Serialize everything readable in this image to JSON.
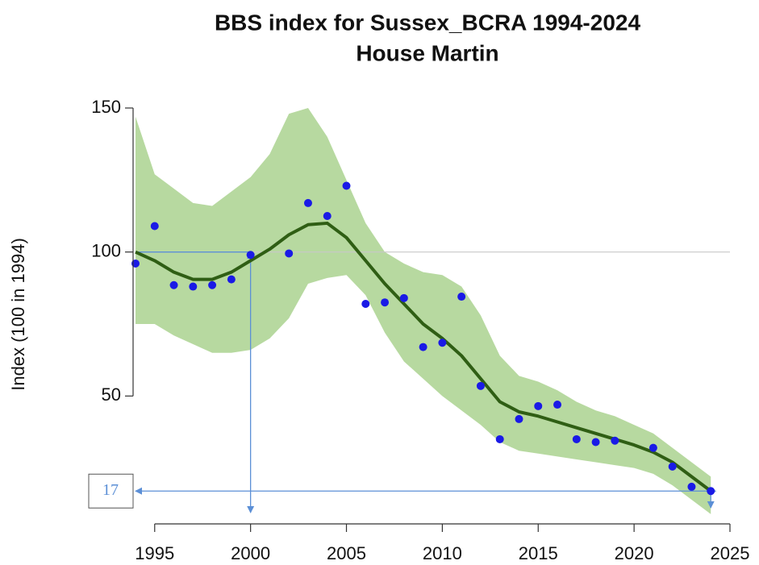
{
  "chart_data": {
    "type": "trend-index",
    "title": "BBS index for Sussex_BCRA 1994-2024",
    "subtitle": "House Martin",
    "y_label": "Index (100 in 1994)",
    "x": [
      1994,
      1995,
      1996,
      1997,
      1998,
      1999,
      2000,
      2001,
      2002,
      2003,
      2004,
      2005,
      2006,
      2007,
      2008,
      2009,
      2010,
      2011,
      2012,
      2013,
      2014,
      2015,
      2016,
      2017,
      2018,
      2019,
      2020,
      2021,
      2022,
      2023,
      2024
    ],
    "points": {
      "color": "#1a1ae6",
      "values": [
        96,
        109,
        88.5,
        88,
        88.5,
        90.5,
        99,
        null,
        99.5,
        117,
        112.5,
        123,
        82,
        82.5,
        84,
        67,
        68.5,
        84.5,
        53.5,
        35,
        42,
        46.5,
        47,
        35,
        34,
        34.5,
        null,
        32,
        25.5,
        18.5,
        17
      ]
    },
    "trend": {
      "color": "#2f5e14",
      "values": [
        100,
        97,
        93,
        90.5,
        90.5,
        93,
        97,
        101,
        106,
        109.5,
        110,
        105,
        97,
        89,
        82,
        75,
        70,
        64,
        56,
        48,
        44.5,
        43,
        41,
        39,
        37,
        35,
        33,
        30.5,
        27,
        22,
        17
      ]
    },
    "band": {
      "color": "#b7d9a0",
      "upper": [
        147,
        127,
        122,
        117,
        116,
        121,
        126,
        134,
        148,
        150,
        140,
        125,
        110,
        100,
        96,
        93,
        92,
        88,
        78,
        64,
        57,
        55,
        52,
        48,
        45,
        43,
        40,
        37,
        32,
        27,
        22
      ],
      "lower": [
        75,
        75,
        71,
        68,
        65,
        65,
        66,
        70,
        77,
        89,
        91,
        92,
        85,
        72,
        62,
        56,
        50,
        45,
        40,
        34,
        31,
        30,
        29,
        28,
        27,
        26,
        25,
        23,
        19,
        14,
        9
      ]
    },
    "reference_line": 100,
    "annotation": {
      "value": 17,
      "x": 2024,
      "x_ref": 2000,
      "color": "#5b8fd6"
    },
    "xlim": [
      1994,
      2025
    ],
    "ylim": [
      5.6,
      150
    ],
    "xticks": [
      1995,
      2000,
      2005,
      2010,
      2015,
      2020,
      2025
    ],
    "yticks": [
      50,
      100,
      150
    ]
  }
}
